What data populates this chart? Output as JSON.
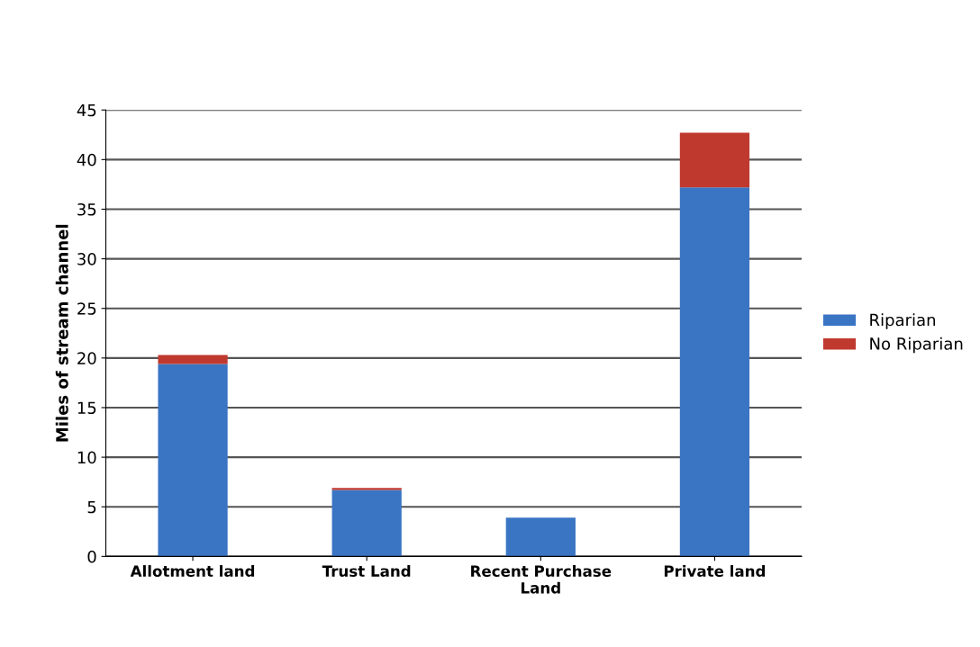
{
  "chart_data": {
    "type": "bar",
    "stacked": true,
    "ylabel": "Miles of stream channel",
    "categories": [
      "Allotment land",
      "Trust Land",
      "Recent Purchase\nLand",
      "Private land"
    ],
    "series": [
      {
        "name": "Riparian",
        "color": "#3a75c4",
        "values": [
          19.4,
          6.7,
          3.9,
          37.2
        ]
      },
      {
        "name": "No Riparian",
        "color": "#c0392f",
        "values": [
          0.9,
          0.2,
          0,
          5.5
        ]
      }
    ],
    "ylim": [
      0,
      45
    ],
    "yticks": [
      0,
      5,
      10,
      15,
      20,
      25,
      30,
      35,
      40,
      45
    ],
    "grid": "y",
    "legend": "right"
  }
}
